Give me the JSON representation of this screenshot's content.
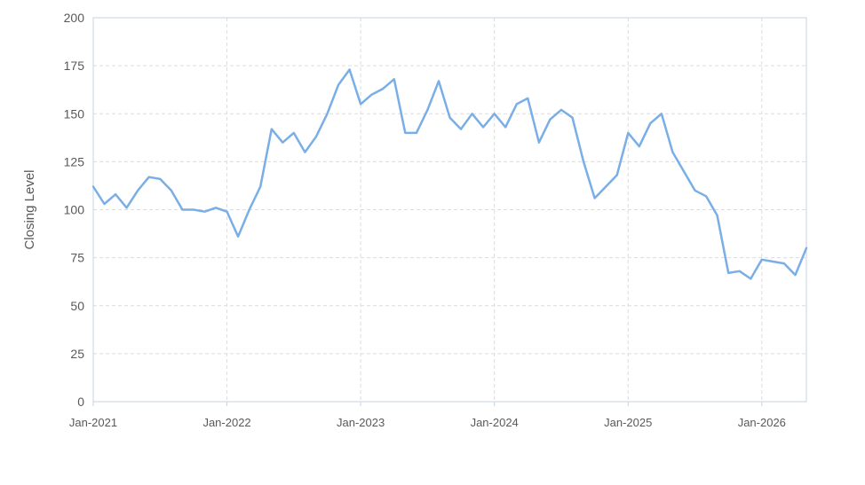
{
  "chart_data": {
    "type": "line",
    "title": "",
    "xlabel": "",
    "ylabel": "Closing Level",
    "ylim": [
      0,
      200
    ],
    "yticks": [
      0,
      25,
      50,
      75,
      100,
      125,
      150,
      175,
      200
    ],
    "xlim": [
      "2021-01",
      "2026-05"
    ],
    "xticks": [
      "Jan-2021",
      "Jan-2022",
      "Jan-2023",
      "Jan-2024",
      "Jan-2025",
      "Jan-2026"
    ],
    "grid": true,
    "legend": "none",
    "line_color": "#7aaee6",
    "series": [
      {
        "points": [
          [
            "2021-01",
            112
          ],
          [
            "2021-02",
            103
          ],
          [
            "2021-03",
            108
          ],
          [
            "2021-04",
            101
          ],
          [
            "2021-05",
            110
          ],
          [
            "2021-06",
            117
          ],
          [
            "2021-07",
            116
          ],
          [
            "2021-08",
            110
          ],
          [
            "2021-09",
            100
          ],
          [
            "2021-10",
            100
          ],
          [
            "2021-11",
            99
          ],
          [
            "2021-12",
            101
          ],
          [
            "2022-01",
            99
          ],
          [
            "2022-02",
            86
          ],
          [
            "2022-03",
            100
          ],
          [
            "2022-04",
            112
          ],
          [
            "2022-05",
            142
          ],
          [
            "2022-06",
            135
          ],
          [
            "2022-07",
            140
          ],
          [
            "2022-08",
            130
          ],
          [
            "2022-09",
            138
          ],
          [
            "2022-10",
            150
          ],
          [
            "2022-11",
            165
          ],
          [
            "2022-12",
            173
          ],
          [
            "2023-01",
            155
          ],
          [
            "2023-02",
            160
          ],
          [
            "2023-03",
            163
          ],
          [
            "2023-04",
            168
          ],
          [
            "2023-05",
            140
          ],
          [
            "2023-06",
            140
          ],
          [
            "2023-07",
            152
          ],
          [
            "2023-08",
            167
          ],
          [
            "2023-09",
            148
          ],
          [
            "2023-10",
            142
          ],
          [
            "2023-11",
            150
          ],
          [
            "2023-12",
            143
          ],
          [
            "2024-01",
            150
          ],
          [
            "2024-02",
            143
          ],
          [
            "2024-03",
            155
          ],
          [
            "2024-04",
            158
          ],
          [
            "2024-05",
            135
          ],
          [
            "2024-06",
            147
          ],
          [
            "2024-07",
            152
          ],
          [
            "2024-08",
            148
          ],
          [
            "2024-09",
            125
          ],
          [
            "2024-10",
            106
          ],
          [
            "2024-11",
            112
          ],
          [
            "2024-12",
            118
          ],
          [
            "2025-01",
            140
          ],
          [
            "2025-02",
            133
          ],
          [
            "2025-03",
            145
          ],
          [
            "2025-04",
            150
          ],
          [
            "2025-05",
            130
          ],
          [
            "2025-06",
            120
          ],
          [
            "2025-07",
            110
          ],
          [
            "2025-08",
            107
          ],
          [
            "2025-09",
            97
          ],
          [
            "2025-10",
            67
          ],
          [
            "2025-11",
            68
          ],
          [
            "2025-12",
            64
          ],
          [
            "2026-01",
            74
          ],
          [
            "2026-02",
            73
          ],
          [
            "2026-03",
            72
          ],
          [
            "2026-04",
            66
          ],
          [
            "2026-05",
            80
          ]
        ]
      }
    ]
  }
}
